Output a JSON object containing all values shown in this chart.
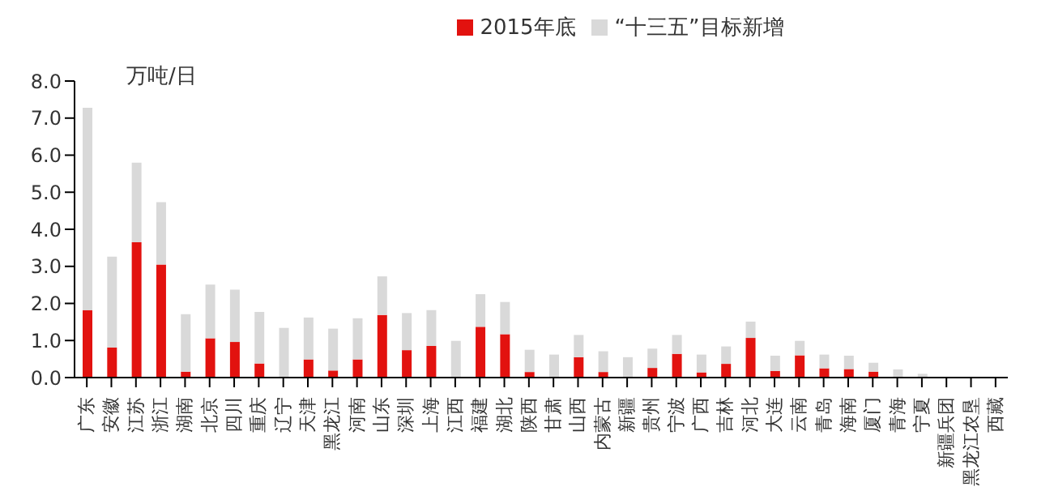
{
  "chart_data": {
    "type": "bar",
    "stacked": true,
    "ylabel": "万吨/日",
    "categories": [
      "广东",
      "安徽",
      "江苏",
      "浙江",
      "湖南",
      "北京",
      "四川",
      "重庆",
      "辽宁",
      "天津",
      "黑龙江",
      "河南",
      "山东",
      "深圳",
      "上海",
      "江西",
      "福建",
      "湖北",
      "陕西",
      "甘肃",
      "山西",
      "内蒙古",
      "新疆",
      "贵州",
      "宁波",
      "广西",
      "吉林",
      "河北",
      "大连",
      "云南",
      "青岛",
      "海南",
      "厦门",
      "青海",
      "宁夏",
      "新疆兵团",
      "黑龙江农垦",
      "西藏"
    ],
    "series": [
      {
        "name": "2015年底",
        "color": "#e2120f",
        "values": [
          1.82,
          0.81,
          3.65,
          3.05,
          0.16,
          1.06,
          0.96,
          0.38,
          0,
          0.49,
          0.19,
          0.49,
          1.69,
          0.74,
          0.85,
          0,
          1.37,
          1.17,
          0.15,
          0,
          0.55,
          0.15,
          0,
          0.26,
          0.64,
          0.14,
          0.37,
          1.07,
          0.18,
          0.6,
          0.25,
          0.23,
          0.16,
          0,
          0,
          0,
          0,
          0
        ]
      },
      {
        "name": "“十三五”目标新增",
        "color": "#d9d9d9",
        "values": [
          5.46,
          2.45,
          2.15,
          1.68,
          1.55,
          1.45,
          1.41,
          1.39,
          1.34,
          1.13,
          1.13,
          1.11,
          1.04,
          1.0,
          0.97,
          0.99,
          0.88,
          0.87,
          0.6,
          0.62,
          0.6,
          0.56,
          0.55,
          0.52,
          0.51,
          0.48,
          0.47,
          0.44,
          0.41,
          0.39,
          0.37,
          0.36,
          0.24,
          0.22,
          0.1,
          null,
          null,
          null
        ]
      }
    ],
    "ylim": [
      0,
      8
    ],
    "yticks": [
      {
        "value": 0,
        "label": "0.0"
      },
      {
        "value": 1,
        "label": "1.0"
      },
      {
        "value": 2,
        "label": "2.0"
      },
      {
        "value": 3,
        "label": "3.0"
      },
      {
        "value": 4,
        "label": "4.0"
      },
      {
        "value": 5,
        "label": "5.0"
      },
      {
        "value": 6,
        "label": "6.0"
      },
      {
        "value": 7,
        "label": "7.0"
      },
      {
        "value": 8,
        "label": "8.0"
      }
    ],
    "grid": false,
    "legend": "top"
  }
}
